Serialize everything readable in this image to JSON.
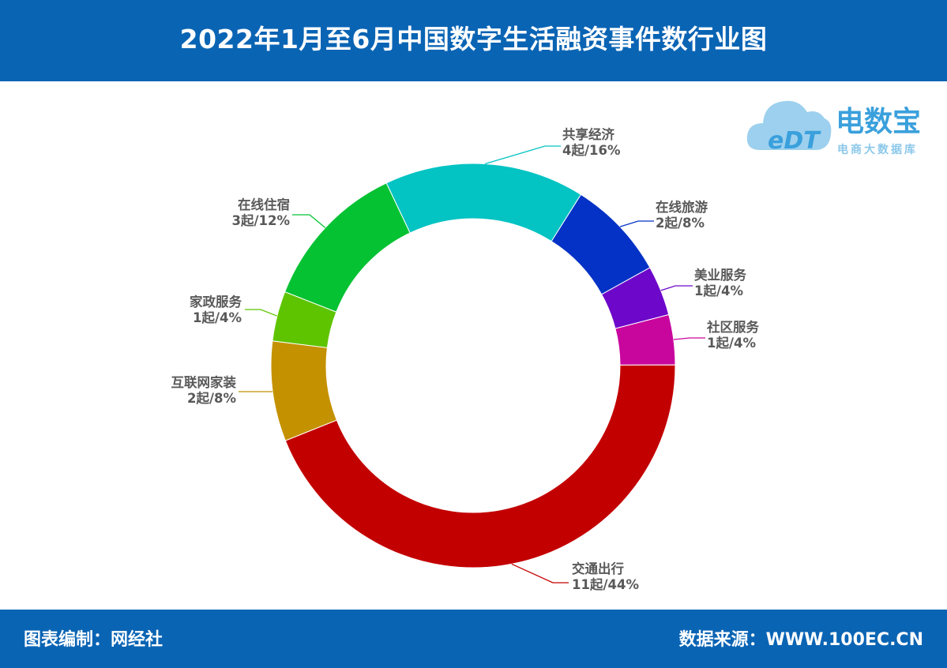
{
  "header": {
    "title": "2022年1月至6月中国数字生活融资事件数行业图"
  },
  "footer": {
    "left_text": "图表编制：网经社",
    "right_text": "数据来源：WWW.100EC.CN"
  },
  "logo": {
    "mark_text": "eDT",
    "name": "电数宝",
    "tagline": "电商大数据库",
    "colors": {
      "cloud": "#9dd0ee",
      "text": "#3aa0dc",
      "tagline": "#8cc8ea"
    }
  },
  "chart_data": {
    "type": "pie",
    "donut": true,
    "unit": "起",
    "categories": [
      "在线旅游",
      "美业服务",
      "社区服务",
      "交通出行",
      "互联网家装",
      "家政服务",
      "在线住宿",
      "共享经济"
    ],
    "values": [
      2,
      1,
      1,
      11,
      2,
      1,
      3,
      4
    ],
    "labels": [
      "2起/8%",
      "1起/4%",
      "1起/4%",
      "11起/44%",
      "2起/8%",
      "1起/4%",
      "3起/12%",
      "4起/16%"
    ],
    "colors": [
      "#0432c6",
      "#6d07c9",
      "#c8069e",
      "#c30000",
      "#c49100",
      "#5ec400",
      "#05c233",
      "#04c3c3"
    ],
    "start_angle_deg": 32.2,
    "direction": "clockwise"
  }
}
